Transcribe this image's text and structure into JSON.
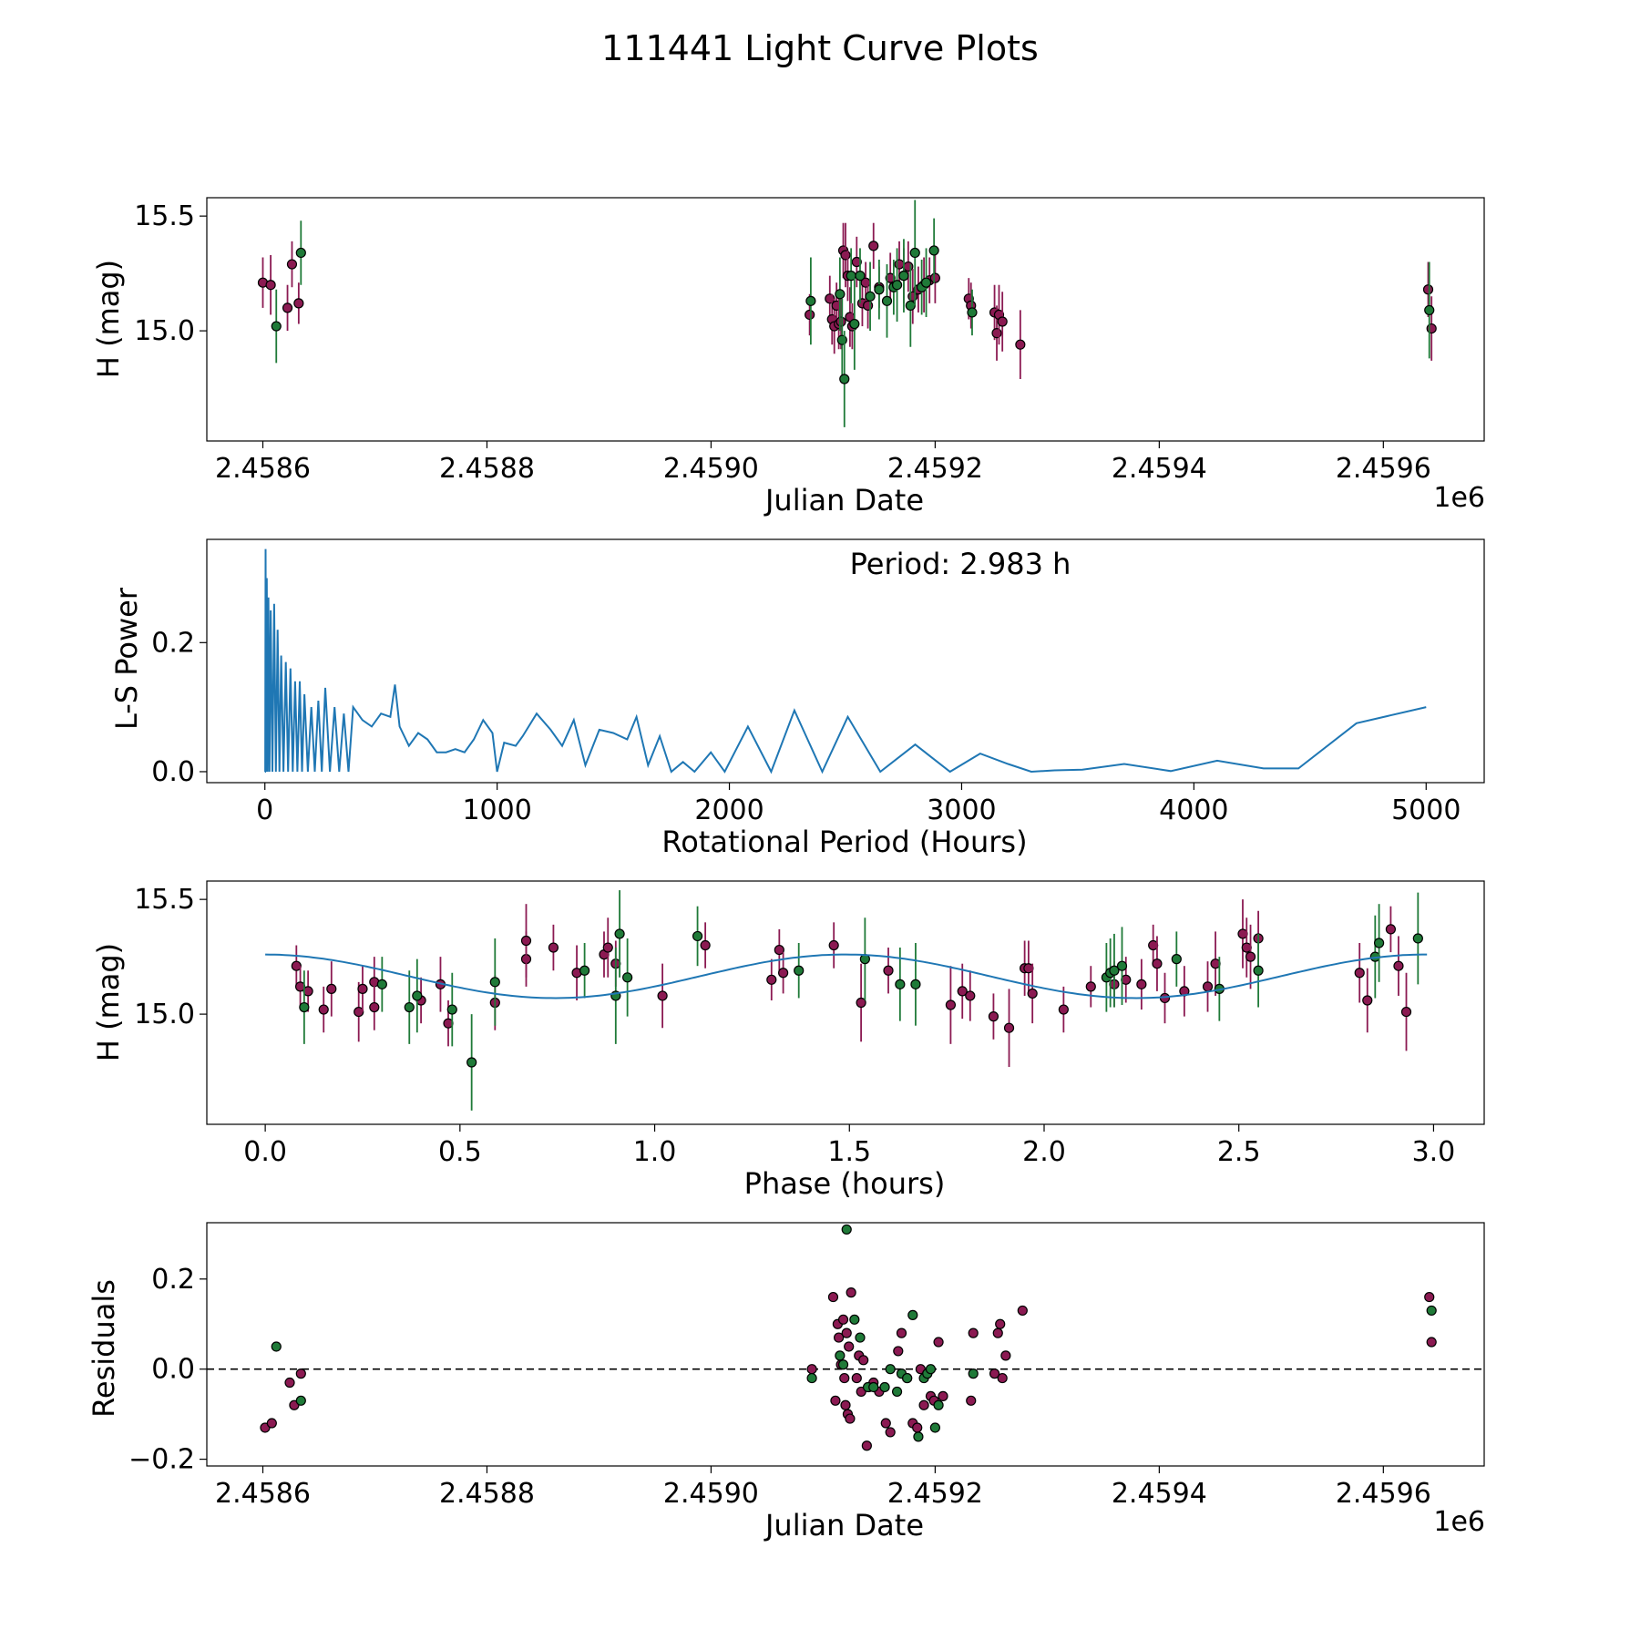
{
  "figure_title": "111441 Light Curve Plots",
  "colors": {
    "red_filter": "#8b1a52",
    "green_filter": "#1f7a38",
    "curve": "#1f77b4",
    "axes": "#000000"
  },
  "chart_data": [
    {
      "id": "lc",
      "type": "scatter",
      "title": "",
      "xlabel": "Julian Date",
      "ylabel": "H (mag)",
      "x_offset_label": "1e6",
      "xlim": [
        2458550,
        2459690
      ],
      "ylim": [
        14.52,
        15.58
      ],
      "x_ticks": [
        2458600,
        2458800,
        2459000,
        2459200,
        2459400,
        2459600
      ],
      "x_tick_labels": [
        "2.4586",
        "2.4588",
        "2.4590",
        "2.4592",
        "2.4594",
        "2.4596"
      ],
      "y_ticks": [
        15.0,
        15.5
      ],
      "y_tick_labels": [
        "15.0",
        "15.5"
      ],
      "series": [
        {
          "name": "red",
          "color": "#8b1a52",
          "x": [
            2458600,
            2458607,
            2458622,
            2458626,
            2458632,
            2459088,
            2459106,
            2459108,
            2459110,
            2459112,
            2459114,
            2459116,
            2459118,
            2459120,
            2459122,
            2459124,
            2459126,
            2459130,
            2459135,
            2459138,
            2459140,
            2459145,
            2459150,
            2459160,
            2459168,
            2459172,
            2459176,
            2459180,
            2459185,
            2459190,
            2459195,
            2459200,
            2459230,
            2459232,
            2459253,
            2459255,
            2459257,
            2459260,
            2459276,
            2459640,
            2459643
          ],
          "y": [
            15.21,
            15.2,
            15.1,
            15.29,
            15.12,
            15.07,
            15.14,
            15.05,
            15.02,
            15.11,
            15.03,
            15.04,
            15.35,
            15.33,
            15.24,
            15.06,
            15.02,
            15.3,
            15.12,
            15.21,
            15.11,
            15.37,
            15.19,
            15.23,
            15.29,
            15.24,
            15.28,
            15.15,
            15.18,
            15.2,
            15.22,
            15.23,
            15.14,
            15.11,
            15.08,
            14.99,
            15.07,
            15.04,
            14.94,
            15.18,
            15.01
          ],
          "err": [
            0.11,
            0.13,
            0.1,
            0.1,
            0.09,
            0.09,
            0.1,
            0.11,
            0.12,
            0.1,
            0.11,
            0.12,
            0.12,
            0.14,
            0.11,
            0.13,
            0.1,
            0.11,
            0.1,
            0.09,
            0.1,
            0.1,
            0.09,
            0.11,
            0.1,
            0.12,
            0.11,
            0.12,
            0.1,
            0.12,
            0.1,
            0.11,
            0.09,
            0.1,
            0.12,
            0.12,
            0.13,
            0.13,
            0.15,
            0.12,
            0.14
          ]
        },
        {
          "name": "green",
          "color": "#1f7a38",
          "x": [
            2458612,
            2458634,
            2459089,
            2459115,
            2459117,
            2459119,
            2459125,
            2459128,
            2459133,
            2459142,
            2459150,
            2459157,
            2459163,
            2459166,
            2459172,
            2459178,
            2459182,
            2459188,
            2459192,
            2459199,
            2459233,
            2459641
          ],
          "y": [
            15.02,
            15.34,
            15.13,
            15.16,
            14.96,
            14.79,
            15.24,
            15.03,
            15.24,
            15.15,
            15.18,
            15.13,
            15.19,
            15.2,
            15.24,
            15.11,
            15.34,
            15.19,
            15.21,
            15.35,
            15.08,
            15.09
          ],
          "err": [
            0.16,
            0.14,
            0.19,
            0.16,
            0.18,
            0.21,
            0.12,
            0.2,
            0.12,
            0.15,
            0.13,
            0.16,
            0.12,
            0.16,
            0.16,
            0.18,
            0.23,
            0.12,
            0.15,
            0.14,
            0.1,
            0.21
          ]
        }
      ]
    },
    {
      "id": "ls",
      "type": "line",
      "title": "",
      "xlabel": "Rotational Period (Hours)",
      "ylabel": "L-S Power",
      "annotation": "Period: 2.983 h",
      "xlim": [
        -250,
        5250
      ],
      "ylim": [
        -0.017,
        0.36
      ],
      "x_ticks": [
        0,
        1000,
        2000,
        3000,
        4000,
        5000
      ],
      "x_tick_labels": [
        "0",
        "1000",
        "2000",
        "3000",
        "4000",
        "5000"
      ],
      "y_ticks": [
        0.0,
        0.2
      ],
      "y_tick_labels": [
        "0.0",
        "0.2"
      ],
      "series": [
        {
          "name": "periodogram_peaks",
          "color": "#1f77b4",
          "x": [
            0,
            3,
            8,
            15,
            25,
            40,
            55,
            70,
            90,
            110,
            130,
            150,
            170,
            200,
            230,
            260,
            300,
            340,
            380,
            420,
            460,
            500,
            540,
            560,
            580,
            620,
            660,
            700,
            740,
            780,
            820,
            860,
            900,
            940,
            980,
            1000,
            1030,
            1080,
            1110,
            1170,
            1230,
            1280,
            1330,
            1380,
            1440,
            1500,
            1560,
            1600,
            1650,
            1700,
            1750,
            1800,
            1850,
            1920,
            1980,
            2080,
            2180,
            2280,
            2400,
            2510,
            2650,
            2800,
            2950,
            3080,
            3200,
            3300,
            3400,
            3520,
            3700,
            3900,
            4100,
            4300,
            4450,
            4700,
            5000
          ],
          "y": [
            0.0,
            0.345,
            0.3,
            0.27,
            0.25,
            0.26,
            0.22,
            0.18,
            0.17,
            0.16,
            0.14,
            0.14,
            0.12,
            0.1,
            0.11,
            0.13,
            0.1,
            0.09,
            0.1,
            0.08,
            0.07,
            0.09,
            0.085,
            0.135,
            0.07,
            0.04,
            0.06,
            0.05,
            0.03,
            0.03,
            0.035,
            0.03,
            0.05,
            0.08,
            0.06,
            0.0,
            0.045,
            0.04,
            0.055,
            0.09,
            0.065,
            0.04,
            0.08,
            0.01,
            0.065,
            0.06,
            0.05,
            0.085,
            0.01,
            0.055,
            0.0,
            0.015,
            0.0,
            0.03,
            0.0,
            0.07,
            0.0,
            0.095,
            0.0,
            0.085,
            0.0,
            0.042,
            0.0,
            0.028,
            0.012,
            0.0,
            0.002,
            0.003,
            0.012,
            0.001,
            0.017,
            0.005,
            0.005,
            0.075,
            0.1
          ]
        }
      ]
    },
    {
      "id": "phase",
      "type": "scatter",
      "title": "",
      "xlabel": "Phase (hours)",
      "ylabel": "H (mag)",
      "xlim": [
        -0.15,
        3.13
      ],
      "ylim": [
        14.52,
        15.58
      ],
      "x_ticks": [
        0.0,
        0.5,
        1.0,
        1.5,
        2.0,
        2.5,
        3.0
      ],
      "x_tick_labels": [
        "0.0",
        "0.5",
        "1.0",
        "1.5",
        "2.0",
        "2.5",
        "3.0"
      ],
      "y_ticks": [
        15.0,
        15.5
      ],
      "y_tick_labels": [
        "15.0",
        "15.5"
      ],
      "series": [
        {
          "name": "red",
          "color": "#8b1a52",
          "x": [
            0.08,
            0.09,
            0.11,
            0.15,
            0.17,
            0.24,
            0.25,
            0.28,
            0.28,
            0.4,
            0.45,
            0.47,
            0.59,
            0.67,
            0.67,
            0.74,
            0.8,
            0.87,
            0.88,
            0.9,
            1.02,
            1.13,
            1.3,
            1.32,
            1.33,
            1.46,
            1.53,
            1.6,
            1.76,
            1.79,
            1.81,
            1.87,
            1.91,
            1.95,
            1.96,
            1.97,
            2.05,
            2.12,
            2.18,
            2.21,
            2.25,
            2.28,
            2.29,
            2.31,
            2.36,
            2.42,
            2.44,
            2.51,
            2.52,
            2.53,
            2.55,
            2.81,
            2.83,
            2.89,
            2.91,
            2.93
          ],
          "y": [
            15.21,
            15.12,
            15.1,
            15.02,
            15.11,
            15.01,
            15.11,
            15.14,
            15.03,
            15.06,
            15.13,
            14.96,
            15.05,
            15.24,
            15.32,
            15.29,
            15.18,
            15.26,
            15.29,
            15.22,
            15.08,
            15.3,
            15.15,
            15.28,
            15.18,
            15.3,
            15.05,
            15.19,
            15.04,
            15.1,
            15.08,
            14.99,
            14.94,
            15.2,
            15.2,
            15.09,
            15.02,
            15.12,
            15.13,
            15.15,
            15.13,
            15.3,
            15.22,
            15.07,
            15.1,
            15.12,
            15.22,
            15.35,
            15.29,
            15.25,
            15.33,
            15.18,
            15.06,
            15.37,
            15.21,
            15.01
          ],
          "err": [
            0.09,
            0.09,
            0.09,
            0.1,
            0.12,
            0.13,
            0.1,
            0.11,
            0.1,
            0.1,
            0.12,
            0.1,
            0.12,
            0.12,
            0.16,
            0.1,
            0.12,
            0.1,
            0.13,
            0.1,
            0.14,
            0.1,
            0.09,
            0.09,
            0.09,
            0.1,
            0.17,
            0.1,
            0.17,
            0.12,
            0.11,
            0.1,
            0.17,
            0.12,
            0.12,
            0.13,
            0.1,
            0.09,
            0.1,
            0.1,
            0.11,
            0.09,
            0.12,
            0.11,
            0.11,
            0.11,
            0.14,
            0.15,
            0.13,
            0.14,
            0.12,
            0.13,
            0.14,
            0.1,
            0.13,
            0.17
          ]
        },
        {
          "name": "green",
          "color": "#1f7a38",
          "x": [
            0.1,
            0.3,
            0.37,
            0.39,
            0.48,
            0.53,
            0.59,
            0.82,
            0.9,
            0.91,
            0.93,
            1.11,
            1.37,
            1.54,
            1.63,
            1.67,
            2.16,
            2.17,
            2.18,
            2.2,
            2.34,
            2.45,
            2.55,
            2.85,
            2.86,
            2.96
          ],
          "y": [
            15.03,
            15.13,
            15.03,
            15.08,
            15.02,
            14.79,
            15.14,
            15.19,
            15.08,
            15.35,
            15.16,
            15.34,
            15.19,
            15.24,
            15.13,
            15.13,
            15.16,
            15.18,
            15.19,
            15.21,
            15.24,
            15.11,
            15.19,
            15.25,
            15.31,
            15.33
          ],
          "err": [
            0.16,
            0.12,
            0.16,
            0.16,
            0.16,
            0.21,
            0.19,
            0.12,
            0.21,
            0.19,
            0.17,
            0.13,
            0.12,
            0.18,
            0.16,
            0.18,
            0.15,
            0.15,
            0.16,
            0.17,
            0.12,
            0.14,
            0.16,
            0.18,
            0.17,
            0.2
          ]
        },
        {
          "name": "model_fit",
          "color": "#1f77b4",
          "curve": {
            "mean": 15.165,
            "amplitude": 0.095,
            "period": 1.4915,
            "phase": 0.37,
            "range": [
              0.0,
              2.983
            ]
          }
        }
      ]
    },
    {
      "id": "res",
      "type": "scatter",
      "title": "",
      "xlabel": "Julian Date",
      "ylabel": "Residuals",
      "x_offset_label": "1e6",
      "xlim": [
        2458550,
        2459690
      ],
      "ylim": [
        -0.215,
        0.325
      ],
      "x_ticks": [
        2458600,
        2458800,
        2459000,
        2459200,
        2459400,
        2459600
      ],
      "x_tick_labels": [
        "2.4586",
        "2.4588",
        "2.4590",
        "2.4592",
        "2.4594",
        "2.4596"
      ],
      "y_ticks": [
        -0.2,
        0.0,
        0.2
      ],
      "y_tick_labels": [
        "−0.2",
        "0.0",
        "0.2"
      ],
      "reference_line": 0.0,
      "series": [
        {
          "name": "red",
          "color": "#8b1a52",
          "x": [
            2458602,
            2458608,
            2458624,
            2458628,
            2458634,
            2459090,
            2459109,
            2459111,
            2459113,
            2459114,
            2459116,
            2459118,
            2459119,
            2459120,
            2459121,
            2459122,
            2459123,
            2459124,
            2459125,
            2459130,
            2459132,
            2459134,
            2459136,
            2459139,
            2459141,
            2459145,
            2459150,
            2459156,
            2459160,
            2459167,
            2459170,
            2459175,
            2459180,
            2459184,
            2459187,
            2459190,
            2459193,
            2459196,
            2459199,
            2459203,
            2459207,
            2459232,
            2459234,
            2459253,
            2459256,
            2459258,
            2459260,
            2459263,
            2459278,
            2459641,
            2459643
          ],
          "y": [
            -0.13,
            -0.12,
            -0.03,
            -0.08,
            -0.01,
            0.0,
            0.16,
            -0.07,
            0.1,
            0.07,
            0.01,
            0.11,
            -0.02,
            -0.08,
            0.08,
            -0.1,
            0.05,
            -0.11,
            0.17,
            -0.02,
            0.03,
            -0.05,
            0.02,
            -0.17,
            -0.04,
            -0.03,
            -0.05,
            -0.12,
            -0.14,
            0.04,
            0.08,
            -0.02,
            -0.12,
            -0.13,
            0.0,
            -0.08,
            -0.01,
            -0.06,
            -0.07,
            0.06,
            -0.06,
            -0.07,
            0.08,
            -0.01,
            0.08,
            0.1,
            -0.02,
            0.03,
            0.13,
            0.16,
            0.06
          ],
          "err": []
        },
        {
          "name": "green",
          "color": "#1f7a38",
          "x": [
            2458612,
            2458634,
            2459090,
            2459115,
            2459118,
            2459121,
            2459128,
            2459133,
            2459140,
            2459145,
            2459155,
            2459160,
            2459166,
            2459170,
            2459175,
            2459180,
            2459185,
            2459190,
            2459193,
            2459196,
            2459200,
            2459203,
            2459234,
            2459643
          ],
          "y": [
            0.05,
            -0.07,
            -0.02,
            0.03,
            0.01,
            0.31,
            0.11,
            0.07,
            -0.04,
            -0.04,
            -0.04,
            0.0,
            -0.05,
            -0.01,
            -0.02,
            0.12,
            -0.15,
            -0.02,
            -0.01,
            0.0,
            -0.13,
            -0.08,
            -0.01,
            0.13
          ],
          "err": []
        }
      ]
    }
  ]
}
